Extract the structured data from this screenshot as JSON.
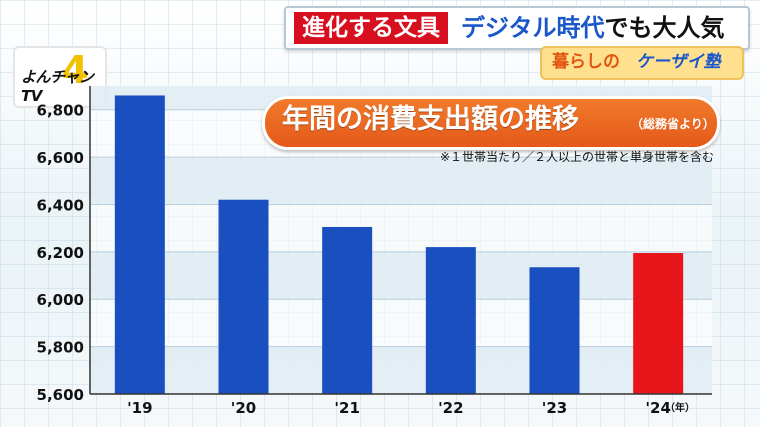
{
  "header": {
    "caption_red": "進化する文具",
    "caption_blue": "デジタル時代",
    "caption_tail": "でも大人気",
    "series_tag": [
      "暮らしの",
      "ケーザイ塾"
    ],
    "logo_text": "よんチャンTV",
    "logo_mark": "4"
  },
  "chart_data": {
    "type": "bar",
    "title": "年間の消費支出額の推移",
    "source": "（総務省より）",
    "note": "※１世帯当たり／２人以上の世帯と単身世帯を含む",
    "categories": [
      "'19",
      "'20",
      "'21",
      "'22",
      "'23",
      "'24"
    ],
    "x_unit": "（年）",
    "values": [
      6860,
      6420,
      6305,
      6220,
      6135,
      6195
    ],
    "bar_colors": [
      "#1a4fbf",
      "#1a4fbf",
      "#1a4fbf",
      "#1a4fbf",
      "#1a4fbf",
      "#e8151b"
    ],
    "ylim": [
      5600,
      6900
    ],
    "yticks": [
      "5,600",
      "5,800",
      "6,000",
      "6,200",
      "6,400",
      "6,600",
      "6,800"
    ],
    "ytick_values": [
      5600,
      5800,
      6000,
      6200,
      6400,
      6600,
      6800
    ],
    "grid": true
  }
}
